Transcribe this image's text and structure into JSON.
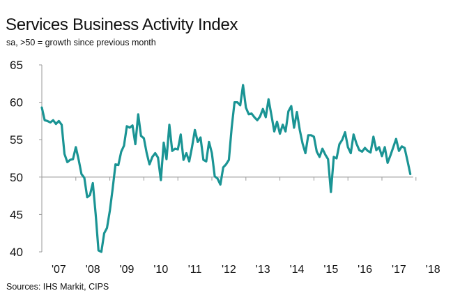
{
  "chart_data": {
    "type": "line",
    "title": "Services Business Activity Index",
    "subtitle": "sa, >50 = growth since previous month",
    "source": "Sources: IHS Markit, CIPS",
    "xlabel": "",
    "ylabel": "",
    "ylim": [
      40,
      65
    ],
    "yticks": [
      "65",
      "60",
      "55",
      "50",
      "45",
      "40"
    ],
    "ytick_values": [
      65,
      60,
      55,
      50,
      45,
      40
    ],
    "baseline": 50,
    "xticks": [
      "'07",
      "'08",
      "'09",
      "'10",
      "'11",
      "'12",
      "'13",
      "'14",
      "'15",
      "'16",
      "'17",
      "'18"
    ],
    "x_start": "2007-01",
    "x_frequency": "monthly",
    "grid": false,
    "legend": "none",
    "line_color": "#1a9494",
    "series": [
      {
        "name": "Services Business Activity Index",
        "values": [
          59.3,
          57.6,
          57.5,
          57.3,
          57.6,
          57.1,
          57.5,
          57.0,
          53.1,
          52.0,
          52.3,
          52.4,
          54.0,
          52.3,
          50.4,
          49.9,
          47.3,
          47.6,
          49.2,
          45.0,
          40.2,
          40.0,
          42.5,
          43.2,
          45.5,
          48.5,
          51.7,
          51.6,
          53.4,
          54.2,
          56.8,
          56.6,
          56.9,
          54.4,
          58.4,
          55.5,
          55.2,
          53.2,
          51.7,
          52.7,
          53.2,
          52.6,
          49.6,
          54.6,
          52.4,
          57.0,
          53.5,
          53.8,
          53.7,
          55.7,
          52.3,
          53.2,
          52.1,
          54.0,
          56.3,
          54.7,
          55.3,
          52.3,
          52.1,
          54.7,
          53.2,
          50.1,
          49.8,
          49.0,
          51.3,
          51.7,
          52.3,
          56.7,
          60.0,
          60.0,
          59.6,
          62.3,
          59.3,
          58.4,
          58.5,
          58.0,
          57.6,
          58.1,
          59.1,
          58.0,
          60.4,
          58.3,
          56.1,
          57.4,
          55.8,
          57.0,
          56.1,
          58.8,
          59.5,
          56.6,
          58.7,
          56.3,
          54.5,
          53.2,
          55.6,
          55.6,
          55.4,
          53.4,
          52.7,
          53.8,
          53.0,
          52.4,
          48.0,
          52.7,
          52.5,
          54.4,
          55.0,
          56.0,
          54.0,
          53.2,
          55.7,
          54.5,
          53.6,
          53.4,
          53.9,
          53.5,
          53.3,
          55.4,
          53.6,
          54.0,
          52.8,
          54.0,
          51.9,
          52.9,
          54.0,
          55.1,
          53.5,
          54.1,
          53.9,
          52.2,
          50.4
        ]
      }
    ]
  }
}
